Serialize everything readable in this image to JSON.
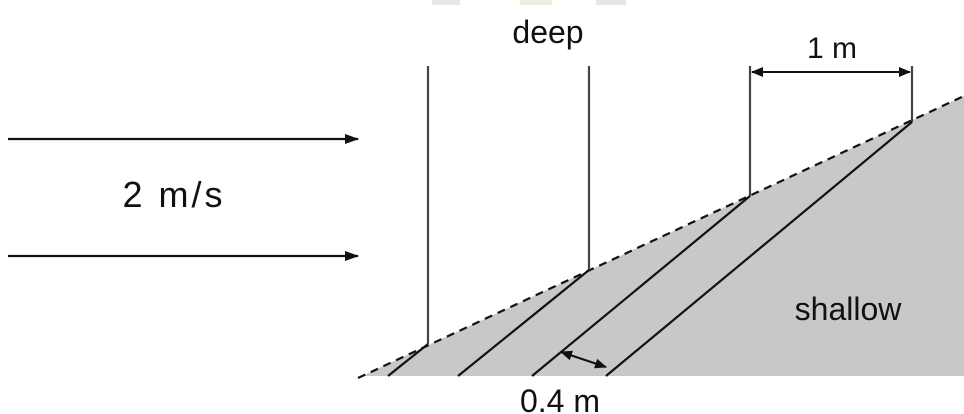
{
  "diagram": {
    "labels": {
      "deep": "deep",
      "shallow": "shallow",
      "speed": "2 m/s",
      "deep_spacing": "1 m",
      "shallow_spacing": "0.4 m"
    },
    "colors": {
      "shallow_region": "#c8c8c8",
      "lines": "#111111"
    }
  }
}
